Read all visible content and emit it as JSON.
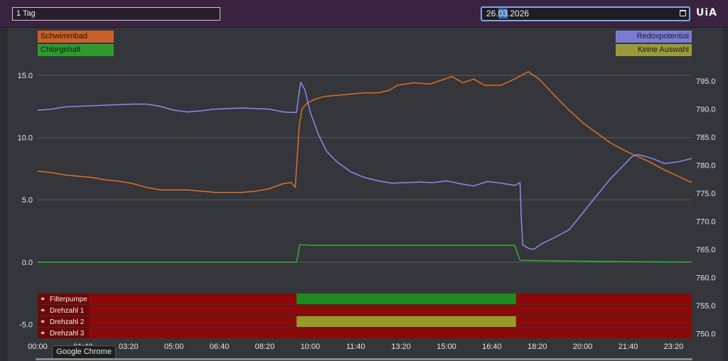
{
  "toolbar": {
    "range_value": "1 Tag",
    "date_day": "26.",
    "date_month": "03",
    "date_year": ".2026",
    "logo_text": "UiA"
  },
  "legend": {
    "left": [
      {
        "name": "Schwimmbad",
        "color": "#c8602a"
      },
      {
        "name": "Chlorgehalt",
        "color": "#2e9a2e"
      }
    ],
    "right": [
      {
        "name": "Redoxpotential",
        "color": "#7b7bd0"
      },
      {
        "name": "Keine Auswahl",
        "color": "#9a9a3c"
      }
    ]
  },
  "status_rows": [
    {
      "label": "Filterpumpe",
      "icon": "link-icon"
    },
    {
      "label": "Drehzahl 1",
      "icon": "link-icon"
    },
    {
      "label": "Drehzahl 2",
      "icon": "link-icon"
    },
    {
      "label": "Drehzahl 3",
      "icon": "link-icon"
    }
  ],
  "tooltip": "Google Chrome",
  "chart_data": {
    "type": "line",
    "x_ticks": [
      "00:00",
      "01:40",
      "03:20",
      "05:00",
      "06:40",
      "08:20",
      "10:00",
      "11:40",
      "13:20",
      "15:00",
      "16:40",
      "18:20",
      "20:00",
      "21:40",
      "23:20"
    ],
    "x_range_hours": [
      0,
      24
    ],
    "y_left_ticks": [
      15.0,
      10.0,
      5.0,
      0.0,
      -5.0
    ],
    "y_left_range": [
      -6.0,
      15.8
    ],
    "y_right_ticks": [
      795.0,
      790.0,
      785.0,
      780.0,
      775.0,
      770.0,
      765.0,
      760.0,
      755.0,
      750.0
    ],
    "y_right_range": [
      749.4,
      797.8
    ],
    "grid": true,
    "series": [
      {
        "name": "Schwimmbad",
        "axis": "left",
        "color": "#e0701f",
        "points": [
          [
            0,
            7.3
          ],
          [
            0.5,
            7.2
          ],
          [
            1,
            7.0
          ],
          [
            1.5,
            6.9
          ],
          [
            2,
            6.8
          ],
          [
            2.5,
            6.6
          ],
          [
            3,
            6.5
          ],
          [
            3.5,
            6.3
          ],
          [
            4,
            6.0
          ],
          [
            4.5,
            5.8
          ],
          [
            5,
            5.8
          ],
          [
            5.5,
            5.8
          ],
          [
            6,
            5.7
          ],
          [
            6.5,
            5.6
          ],
          [
            7,
            5.6
          ],
          [
            7.5,
            5.6
          ],
          [
            8,
            5.7
          ],
          [
            8.5,
            5.9
          ],
          [
            9,
            6.3
          ],
          [
            9.3,
            6.4
          ],
          [
            9.45,
            6.0
          ],
          [
            9.6,
            11.0
          ],
          [
            9.7,
            12.3
          ],
          [
            9.9,
            12.8
          ],
          [
            10.2,
            13.1
          ],
          [
            10.5,
            13.3
          ],
          [
            11,
            13.4
          ],
          [
            11.5,
            13.5
          ],
          [
            12,
            13.6
          ],
          [
            12.5,
            13.6
          ],
          [
            12.9,
            13.8
          ],
          [
            13.2,
            14.2
          ],
          [
            13.8,
            14.4
          ],
          [
            14.4,
            14.3
          ],
          [
            14.8,
            14.6
          ],
          [
            15.2,
            14.9
          ],
          [
            15.6,
            14.4
          ],
          [
            16,
            14.7
          ],
          [
            16.4,
            14.2
          ],
          [
            17,
            14.2
          ],
          [
            17.5,
            14.7
          ],
          [
            18,
            15.3
          ],
          [
            18.4,
            14.7
          ],
          [
            19,
            13.3
          ],
          [
            19.5,
            12.2
          ],
          [
            20,
            11.2
          ],
          [
            20.5,
            10.4
          ],
          [
            21,
            9.6
          ],
          [
            21.5,
            9.0
          ],
          [
            22,
            8.5
          ],
          [
            22.5,
            8.0
          ],
          [
            23,
            7.4
          ],
          [
            23.5,
            6.9
          ],
          [
            24,
            6.4
          ]
        ]
      },
      {
        "name": "Chlorgehalt",
        "axis": "left",
        "color": "#2fb52f",
        "points": [
          [
            0,
            0.0
          ],
          [
            9.5,
            0.0
          ],
          [
            9.62,
            1.4
          ],
          [
            10,
            1.35
          ],
          [
            14,
            1.35
          ],
          [
            17.5,
            1.35
          ],
          [
            17.7,
            0.15
          ],
          [
            19,
            0.1
          ],
          [
            21,
            0.05
          ],
          [
            24,
            0.0
          ]
        ]
      },
      {
        "name": "Redoxpotential",
        "axis": "right",
        "color": "#8b8bef",
        "points": [
          [
            0,
            789.8
          ],
          [
            0.5,
            790.0
          ],
          [
            1,
            790.4
          ],
          [
            1.5,
            790.5
          ],
          [
            2,
            790.6
          ],
          [
            2.5,
            790.7
          ],
          [
            3,
            790.8
          ],
          [
            3.5,
            790.9
          ],
          [
            4,
            790.9
          ],
          [
            4.5,
            790.5
          ],
          [
            5,
            789.8
          ],
          [
            5.5,
            789.5
          ],
          [
            6,
            789.7
          ],
          [
            6.5,
            790.0
          ],
          [
            7,
            790.1
          ],
          [
            7.5,
            790.2
          ],
          [
            8,
            790.1
          ],
          [
            8.5,
            790.0
          ],
          [
            9,
            789.5
          ],
          [
            9.3,
            789.4
          ],
          [
            9.5,
            789.4
          ],
          [
            9.55,
            791.5
          ],
          [
            9.65,
            794.8
          ],
          [
            9.8,
            793.5
          ],
          [
            10,
            789.5
          ],
          [
            10.3,
            785.5
          ],
          [
            10.6,
            782.5
          ],
          [
            11,
            780.5
          ],
          [
            11.5,
            778.8
          ],
          [
            12,
            777.8
          ],
          [
            12.5,
            777.2
          ],
          [
            13,
            776.8
          ],
          [
            13.5,
            776.9
          ],
          [
            14,
            777.0
          ],
          [
            14.5,
            776.9
          ],
          [
            15,
            777.2
          ],
          [
            15.5,
            776.7
          ],
          [
            16,
            776.3
          ],
          [
            16.5,
            777.1
          ],
          [
            17,
            776.8
          ],
          [
            17.5,
            776.4
          ],
          [
            17.7,
            776.9
          ],
          [
            17.75,
            770.0
          ],
          [
            17.8,
            765.8
          ],
          [
            18,
            765.2
          ],
          [
            18.2,
            765.0
          ],
          [
            18.5,
            766.0
          ],
          [
            19,
            767.2
          ],
          [
            19.5,
            768.5
          ],
          [
            20,
            771.5
          ],
          [
            20.5,
            774.5
          ],
          [
            21,
            777.5
          ],
          [
            21.5,
            780.0
          ],
          [
            21.8,
            781.5
          ],
          [
            22,
            781.9
          ],
          [
            22.5,
            781.3
          ],
          [
            23,
            780.3
          ],
          [
            23.5,
            780.6
          ],
          [
            24,
            781.2
          ]
        ]
      }
    ],
    "status_bars": [
      {
        "row": "Filterpumpe",
        "segments": [
          {
            "from": 9.5,
            "to": 17.55,
            "color": "#1f8a1f"
          }
        ],
        "base_color": "#8a0a0a"
      },
      {
        "row": "Drehzahl 1",
        "segments": [],
        "base_color": "#8a0a0a"
      },
      {
        "row": "Drehzahl 2",
        "segments": [
          {
            "from": 9.5,
            "to": 17.55,
            "color": "#9a9a2a"
          }
        ],
        "base_color": "#8a0a0a"
      },
      {
        "row": "Drehzahl 3",
        "segments": [],
        "base_color": "#8a0a0a"
      }
    ]
  }
}
